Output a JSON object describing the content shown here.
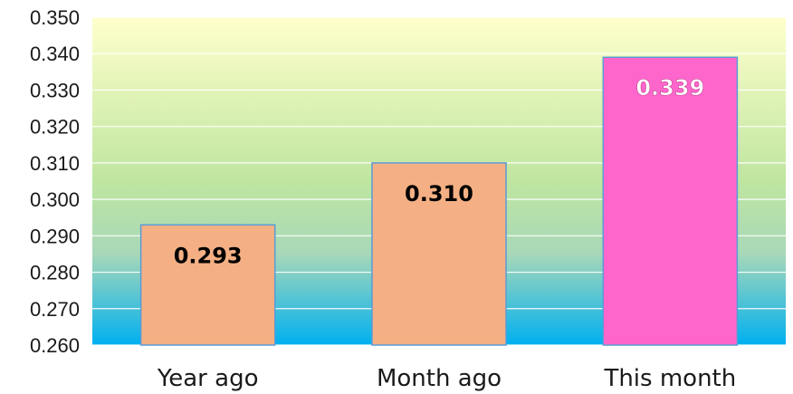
{
  "chart_data": {
    "type": "bar",
    "categories": [
      "Year ago",
      "Month ago",
      "This month"
    ],
    "values": [
      0.293,
      0.31,
      0.339
    ],
    "data_labels": [
      "0.293",
      "0.310",
      "0.339"
    ],
    "title": "",
    "xlabel": "",
    "ylabel": "",
    "ylim": [
      0.26,
      0.35
    ],
    "yticks": [
      "0.260",
      "0.270",
      "0.280",
      "0.290",
      "0.300",
      "0.310",
      "0.320",
      "0.330",
      "0.340",
      "0.350"
    ],
    "grid": true,
    "legend": "none",
    "bar_colors": [
      "#F4B084",
      "#F4B084",
      "#FF66CC"
    ],
    "data_label_colors": [
      "#000000",
      "#000000",
      "#FFFFFF"
    ],
    "background_gradient": [
      "#FFFFCC",
      "#92D050",
      "#00B0F0"
    ]
  }
}
